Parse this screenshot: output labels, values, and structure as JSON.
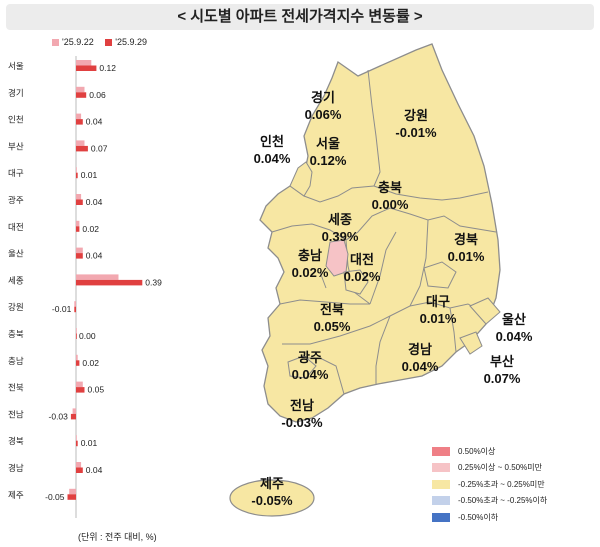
{
  "title": "< 시도별 아파트 전세가격지수 변동률 >",
  "unit_note": "(단위 : 전주 대비, %)",
  "legend_top": [
    {
      "label": "'25.9.22",
      "color": "#f2a8b0"
    },
    {
      "label": "'25.9.29",
      "color": "#e04040"
    }
  ],
  "map_legend": [
    {
      "label": "0.50%이상",
      "color": "#ef7f86"
    },
    {
      "label": "0.25%이상 ~ 0.50%미만",
      "color": "#f6c3c6"
    },
    {
      "label": "-0.25%초과 ~ 0.25%미만",
      "color": "#f7e7a3"
    },
    {
      "label": "-0.50%초과 ~ -0.25%이하",
      "color": "#c3d1ea"
    },
    {
      "label": "-0.50%이하",
      "color": "#4573c4"
    }
  ],
  "regions": [
    {
      "name": "경기",
      "value": "0.06%"
    },
    {
      "name": "강원",
      "value": "-0.01%"
    },
    {
      "name": "인천",
      "value": "0.04%"
    },
    {
      "name": "서울",
      "value": "0.12%"
    },
    {
      "name": "충북",
      "value": "0.00%"
    },
    {
      "name": "세종",
      "value": "0.39%"
    },
    {
      "name": "충남",
      "value": "0.02%"
    },
    {
      "name": "대전",
      "value": "0.02%"
    },
    {
      "name": "경북",
      "value": "0.01%"
    },
    {
      "name": "전북",
      "value": "0.05%"
    },
    {
      "name": "대구",
      "value": "0.01%"
    },
    {
      "name": "울산",
      "value": "0.04%"
    },
    {
      "name": "광주",
      "value": "0.04%"
    },
    {
      "name": "경남",
      "value": "0.04%"
    },
    {
      "name": "부산",
      "value": "0.07%"
    },
    {
      "name": "전남",
      "value": "-0.03%"
    },
    {
      "name": "제주",
      "value": "-0.05%"
    }
  ],
  "chart_data": {
    "type": "bar",
    "orientation": "horizontal",
    "categories": [
      "서울",
      "경기",
      "인천",
      "부산",
      "대구",
      "광주",
      "대전",
      "울산",
      "세종",
      "강원",
      "충북",
      "충남",
      "전북",
      "전남",
      "경북",
      "경남",
      "제주"
    ],
    "series": [
      {
        "name": "'25.9.22",
        "values": [
          0.09,
          0.05,
          0.03,
          0.05,
          0.0,
          0.03,
          0.02,
          0.04,
          0.25,
          -0.01,
          0.0,
          0.01,
          0.04,
          -0.02,
          0.0,
          0.03,
          -0.04
        ]
      },
      {
        "name": "'25.9.29",
        "values": [
          0.12,
          0.06,
          0.04,
          0.07,
          0.01,
          0.04,
          0.02,
          0.04,
          0.39,
          -0.01,
          0.0,
          0.02,
          0.05,
          -0.03,
          0.01,
          0.04,
          -0.05
        ]
      }
    ],
    "data_labels": [
      "0.12",
      "0.06",
      "0.04",
      "0.07",
      "0.01",
      "0.04",
      "0.02",
      "0.04",
      "0.39",
      "-0.01",
      "0.00",
      "0.02",
      "0.05",
      "-0.03",
      "0.01",
      "0.04",
      "-0.05"
    ],
    "colors": [
      "#f2a8b0",
      "#e04040"
    ],
    "xlim": [
      -0.1,
      0.45
    ],
    "legend": "top"
  }
}
